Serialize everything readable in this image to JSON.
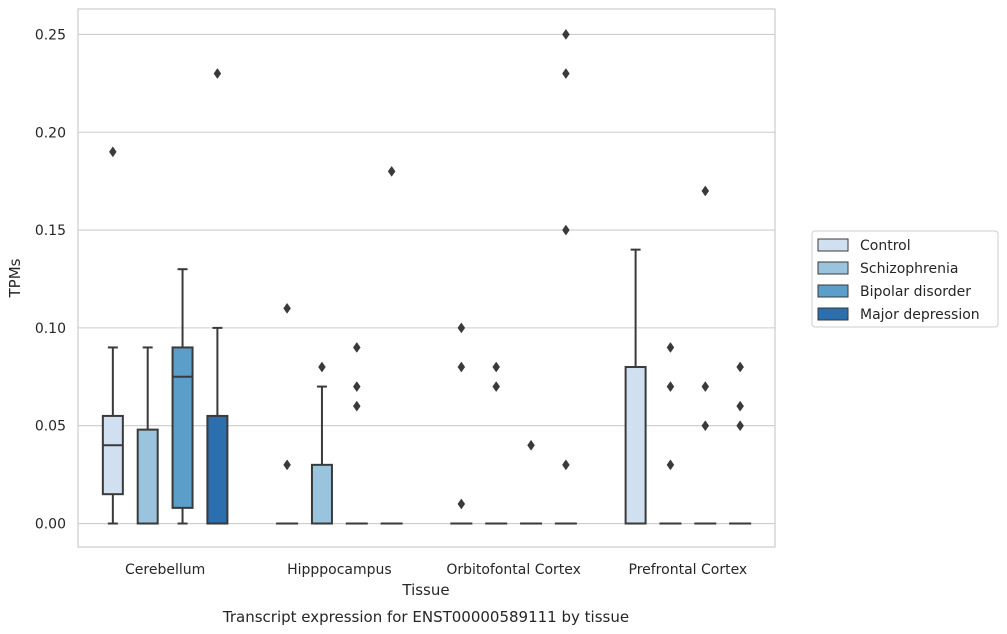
{
  "caption": "Transcript expression for ENST00000589111 by tissue",
  "chart_data": {
    "type": "box",
    "xlabel": "Tissue",
    "ylabel": "TPMs",
    "ylim": [
      -0.012,
      0.263
    ],
    "yticks": [
      "0.00",
      "0.05",
      "0.10",
      "0.15",
      "0.20",
      "0.25"
    ],
    "ytick_values": [
      0.0,
      0.05,
      0.1,
      0.15,
      0.2,
      0.25
    ],
    "grid": "horizontal",
    "legend_position": "right",
    "categories": [
      "Cerebellum",
      "Hipppocampus",
      "Orbitofontal Cortex",
      "Prefrontal Cortex"
    ],
    "series": [
      {
        "name": "Control",
        "color": "#d0e0f1",
        "boxes": [
          {
            "q1": 0.015,
            "median": 0.04,
            "q3": 0.055,
            "whisker_low": 0.0,
            "whisker_high": 0.09,
            "outliers": [
              0.19
            ]
          },
          {
            "q1": 0.0,
            "median": 0.0,
            "q3": 0.0,
            "whisker_low": 0.0,
            "whisker_high": 0.0,
            "outliers": [
              0.03,
              0.11
            ]
          },
          {
            "q1": 0.0,
            "median": 0.0,
            "q3": 0.0,
            "whisker_low": 0.0,
            "whisker_high": 0.0,
            "outliers": [
              0.01,
              0.08,
              0.1
            ]
          },
          {
            "q1": 0.0,
            "median": 0.0,
            "q3": 0.08,
            "whisker_low": 0.0,
            "whisker_high": 0.14,
            "outliers": []
          }
        ]
      },
      {
        "name": "Schizophrenia",
        "color": "#9ac3dd",
        "boxes": [
          {
            "q1": 0.0,
            "median": 0.0,
            "q3": 0.048,
            "whisker_low": 0.0,
            "whisker_high": 0.09,
            "outliers": []
          },
          {
            "q1": 0.0,
            "median": 0.0,
            "q3": 0.03,
            "whisker_low": 0.0,
            "whisker_high": 0.07,
            "outliers": [
              0.08
            ]
          },
          {
            "q1": 0.0,
            "median": 0.0,
            "q3": 0.0,
            "whisker_low": 0.0,
            "whisker_high": 0.0,
            "outliers": [
              0.07,
              0.08
            ]
          },
          {
            "q1": 0.0,
            "median": 0.0,
            "q3": 0.0,
            "whisker_low": 0.0,
            "whisker_high": 0.0,
            "outliers": [
              0.03,
              0.07,
              0.09
            ]
          }
        ]
      },
      {
        "name": "Bipolar disorder",
        "color": "#5b9ec9",
        "boxes": [
          {
            "q1": 0.008,
            "median": 0.075,
            "q3": 0.09,
            "whisker_low": 0.0,
            "whisker_high": 0.13,
            "outliers": []
          },
          {
            "q1": 0.0,
            "median": 0.0,
            "q3": 0.0,
            "whisker_low": 0.0,
            "whisker_high": 0.0,
            "outliers": [
              0.06,
              0.07,
              0.09
            ]
          },
          {
            "q1": 0.0,
            "median": 0.0,
            "q3": 0.0,
            "whisker_low": 0.0,
            "whisker_high": 0.0,
            "outliers": [
              0.04
            ]
          },
          {
            "q1": 0.0,
            "median": 0.0,
            "q3": 0.0,
            "whisker_low": 0.0,
            "whisker_high": 0.0,
            "outliers": [
              0.05,
              0.07,
              0.17
            ]
          }
        ]
      },
      {
        "name": "Major depression",
        "color": "#2b6fae",
        "boxes": [
          {
            "q1": 0.0,
            "median": 0.0,
            "q3": 0.055,
            "whisker_low": 0.0,
            "whisker_high": 0.1,
            "outliers": [
              0.23
            ]
          },
          {
            "q1": 0.0,
            "median": 0.0,
            "q3": 0.0,
            "whisker_low": 0.0,
            "whisker_high": 0.0,
            "outliers": [
              0.18
            ]
          },
          {
            "q1": 0.0,
            "median": 0.0,
            "q3": 0.0,
            "whisker_low": 0.0,
            "whisker_high": 0.0,
            "outliers": [
              0.03,
              0.15,
              0.23,
              0.25
            ]
          },
          {
            "q1": 0.0,
            "median": 0.0,
            "q3": 0.0,
            "whisker_low": 0.0,
            "whisker_high": 0.0,
            "outliers": [
              0.05,
              0.06,
              0.08
            ]
          }
        ]
      }
    ],
    "colors": {
      "edge": "#3a3a3a",
      "grid": "#cccccc",
      "frame": "#cccccc"
    }
  }
}
